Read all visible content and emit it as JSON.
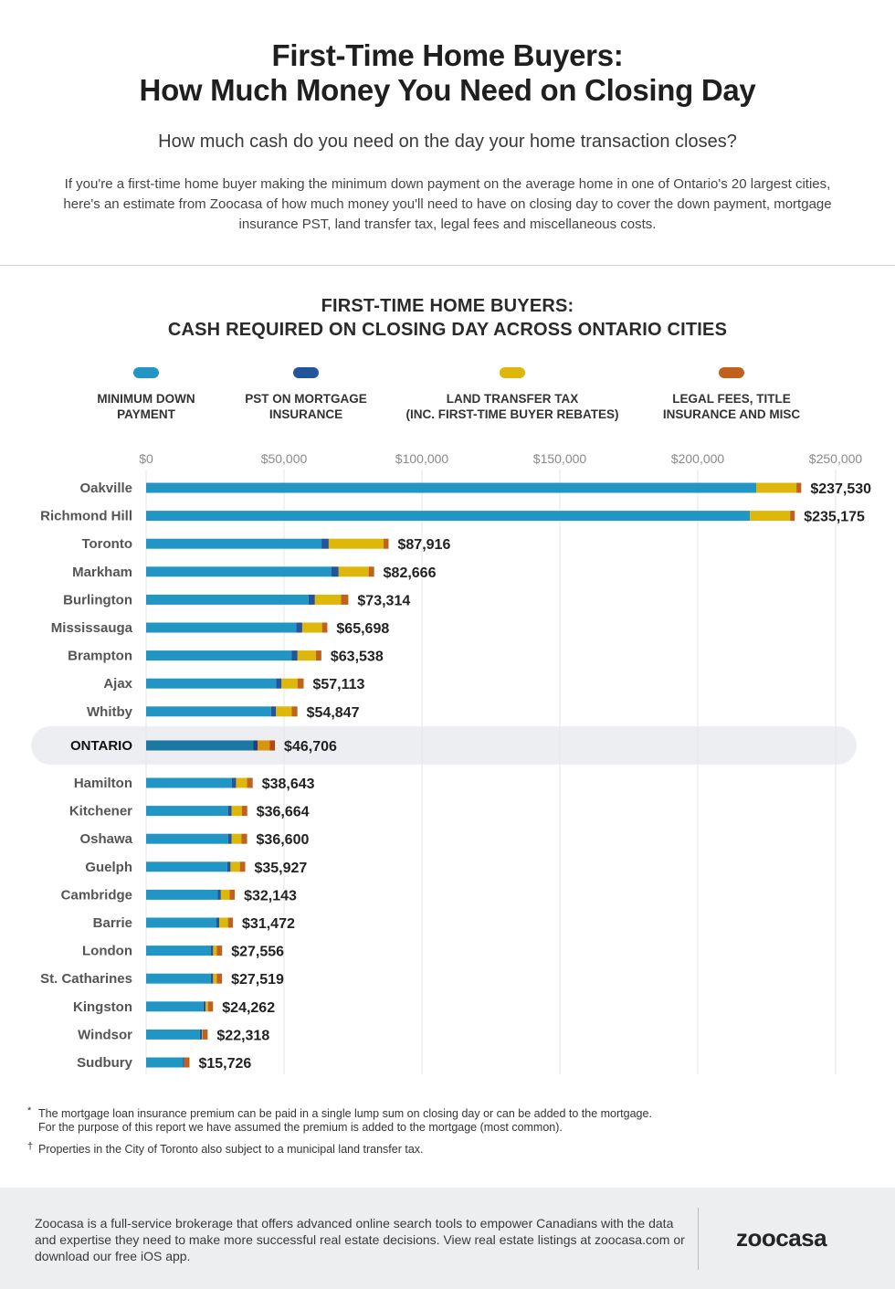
{
  "header": {
    "title_line1": "First-Time Home Buyers:",
    "title_line2": "How Much Money You Need on Closing Day",
    "subtitle": "How much cash do you need on the day your home transaction closes?",
    "intro": "If you're a first-time home buyer making the minimum down payment on the average home in one of Ontario's 20 largest cities, here's an estimate from Zoocasa of how much money you'll need to have on closing day to cover the down payment, mortgage insurance PST, land transfer tax, legal fees and miscellaneous costs."
  },
  "colors": {
    "down_payment": "#2196c4",
    "pst": "#24549a",
    "ltt": "#ddb70a",
    "legal": "#c0621b",
    "ontario_down_payment": "#1a78a3",
    "ontario_pst": "#213f7a",
    "ontario_ltt": "#d9930e",
    "ontario_legal": "#b3470c",
    "highlight_bg": "#eceef1",
    "gridline": "#e6e6e6"
  },
  "chart_data": {
    "type": "bar",
    "orientation": "horizontal",
    "stacked": true,
    "title": "FIRST-TIME HOME BUYERS: CASH REQUIRED ON CLOSING DAY ACROSS ONTARIO CITIES",
    "title_line1": "FIRST-TIME HOME BUYERS:",
    "title_line2": "CASH REQUIRED ON CLOSING DAY ACROSS ONTARIO CITIES",
    "xlabel": "",
    "ylabel": "",
    "xlim": [
      0,
      250000
    ],
    "x_ticks": [
      0,
      50000,
      100000,
      150000,
      200000,
      250000
    ],
    "x_tick_labels": [
      "$0",
      "$50,000",
      "$100,000",
      "$150,000",
      "$200,000",
      "$250,000"
    ],
    "grid": true,
    "legend_position": "top",
    "legend": [
      {
        "key": "down_payment",
        "label": "MINIMUM DOWN\nPAYMENT"
      },
      {
        "key": "pst",
        "label": "PST ON MORTGAGE\nINSURANCE"
      },
      {
        "key": "ltt",
        "label": "LAND TRANSFER TAX\n(INC. FIRST-TIME BUYER REBATES)"
      },
      {
        "key": "legal",
        "label": "LEGAL FEES, TITLE\nINSURANCE AND MISC"
      }
    ],
    "categories": [
      "Oakville",
      "Richmond Hill",
      "Toronto",
      "Markham",
      "Burlington",
      "Mississauga",
      "Brampton",
      "Ajax",
      "Whitby",
      "ONTARIO",
      "Hamilton",
      "Kitchener",
      "Oshawa",
      "Guelph",
      "Cambridge",
      "Barrie",
      "London",
      "St. Catharines",
      "Kingston",
      "Windsor",
      "Sudbury"
    ],
    "highlight_category": "ONTARIO",
    "series": [
      {
        "name": "Minimum Down Payment",
        "key": "down_payment",
        "values": [
          221200,
          218900,
          63600,
          67200,
          58900,
          54400,
          52800,
          47200,
          45300,
          38900,
          31100,
          29700,
          29700,
          29400,
          26000,
          25500,
          23400,
          23400,
          20800,
          19500,
          13300
        ]
      },
      {
        "name": "PST on Mortgage Insurance",
        "key": "pst",
        "values": [
          0,
          0,
          2600,
          2600,
          2300,
          2200,
          2100,
          1900,
          1800,
          1500,
          1500,
          1300,
          1300,
          1200,
          1100,
          1000,
          900,
          900,
          800,
          800,
          500
        ]
      },
      {
        "name": "Land Transfer Tax",
        "key": "ltt",
        "values": [
          14600,
          14600,
          19900,
          10900,
          9500,
          7200,
          6700,
          5800,
          5700,
          4400,
          4000,
          3700,
          3600,
          3400,
          3200,
          3200,
          1300,
          1300,
          800,
          200,
          0
        ]
      },
      {
        "name": "Legal Fees, Title Insurance and Misc",
        "key": "legal",
        "values": [
          1730,
          1675,
          1816,
          1966,
          2614,
          1898,
          1938,
          2213,
          2047,
          1906,
          2043,
          1964,
          2000,
          1927,
          1843,
          1772,
          1956,
          1919,
          1862,
          1818,
          1926
        ]
      }
    ],
    "totals": [
      237530,
      235175,
      87916,
      82666,
      73314,
      65698,
      63538,
      57113,
      54847,
      46706,
      38643,
      36664,
      36600,
      35927,
      32143,
      31472,
      27556,
      27519,
      24262,
      22318,
      15726
    ],
    "total_labels": [
      "$237,530",
      "$235,175",
      "$87,916",
      "$82,666",
      "$73,314",
      "$65,698",
      "$63,538",
      "$57,113",
      "$54,847",
      "$46,706",
      "$38,643",
      "$36,664",
      "$36,600",
      "$35,927",
      "$32,143",
      "$31,472",
      "$27,556",
      "$27,519",
      "$24,262",
      "$22,318",
      "$15,726"
    ]
  },
  "footnotes": [
    {
      "mark": "*",
      "text_line1": "The mortgage loan insurance premium can be paid in a single lump sum on closing day or can be added to the mortgage.",
      "text_line2": "For the purpose of this report we have assumed the premium is added to the mortgage (most common)."
    },
    {
      "mark": "†",
      "text_line1": "Properties in the City of Toronto also subject to a municipal land transfer tax."
    }
  ],
  "footer": {
    "text": "Zoocasa is a full-service brokerage that offers advanced online search tools to empower Canadians with the data and expertise they need to make more successful real estate decisions. View real estate listings at zoocasa.com or download our free iOS app.",
    "logo": "zoocasa"
  }
}
